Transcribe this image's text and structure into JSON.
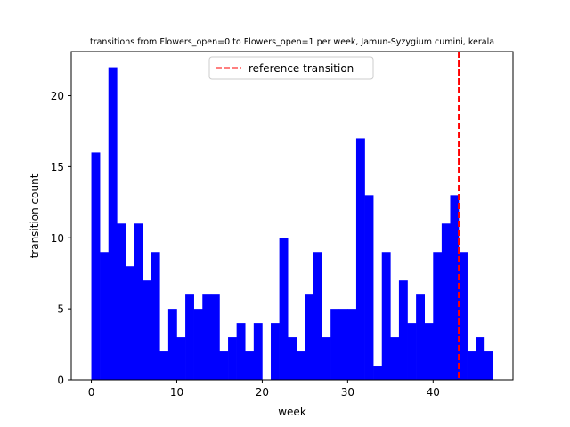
{
  "chart_data": {
    "type": "bar",
    "title": "transitions from Flowers_open=0 to Flowers_open=1 per week, Jamun-Syzygium cumini, kerala",
    "xlabel": "week",
    "ylabel": "transition count",
    "x": [
      0,
      1,
      2,
      3,
      4,
      5,
      6,
      7,
      8,
      9,
      10,
      11,
      12,
      13,
      14,
      15,
      16,
      17,
      18,
      19,
      20,
      21,
      22,
      23,
      24,
      25,
      26,
      27,
      28,
      29,
      30,
      31,
      32,
      33,
      34,
      35,
      36,
      37,
      38,
      39,
      40,
      41,
      42,
      43,
      44,
      45,
      46
    ],
    "values": [
      16,
      9,
      22,
      11,
      8,
      11,
      7,
      9,
      2,
      5,
      3,
      6,
      5,
      6,
      6,
      2,
      3,
      4,
      2,
      4,
      0,
      4,
      10,
      3,
      2,
      6,
      9,
      3,
      5,
      5,
      5,
      17,
      13,
      1,
      9,
      3,
      7,
      4,
      6,
      4,
      9,
      11,
      13,
      9,
      2,
      3,
      2
    ],
    "xlim": [
      -2.35,
      49.35
    ],
    "ylim": [
      0,
      23.1
    ],
    "xticks": [
      0,
      10,
      20,
      30,
      40
    ],
    "yticks": [
      0,
      5,
      10,
      15,
      20
    ],
    "bar_color": "#0000ff",
    "reference_line": {
      "x": 43,
      "color": "#ff0000",
      "label": "reference transition"
    },
    "legend": {
      "placement": "upper-center"
    },
    "grid": false
  }
}
